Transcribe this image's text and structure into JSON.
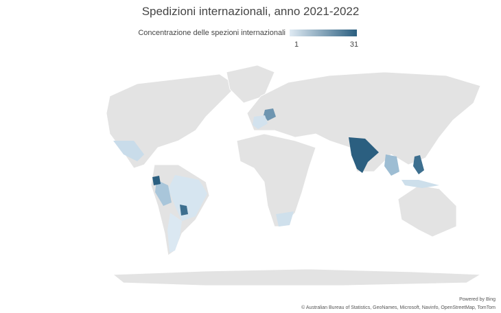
{
  "title": "Spedizioni internazionali, anno 2021-2022",
  "legend": {
    "title": "Concentrazione delle spezioni internazionali",
    "min": 1,
    "max": 31,
    "color_low": "#dfeaf3",
    "color_high": "#2b5f80"
  },
  "attribution": {
    "powered_by": "Powered by Bing",
    "sources": "© Australian Bureau of Statistics, GeoNames, Microsoft, Navinfo, OpenStreetMap, TomTom"
  }
}
